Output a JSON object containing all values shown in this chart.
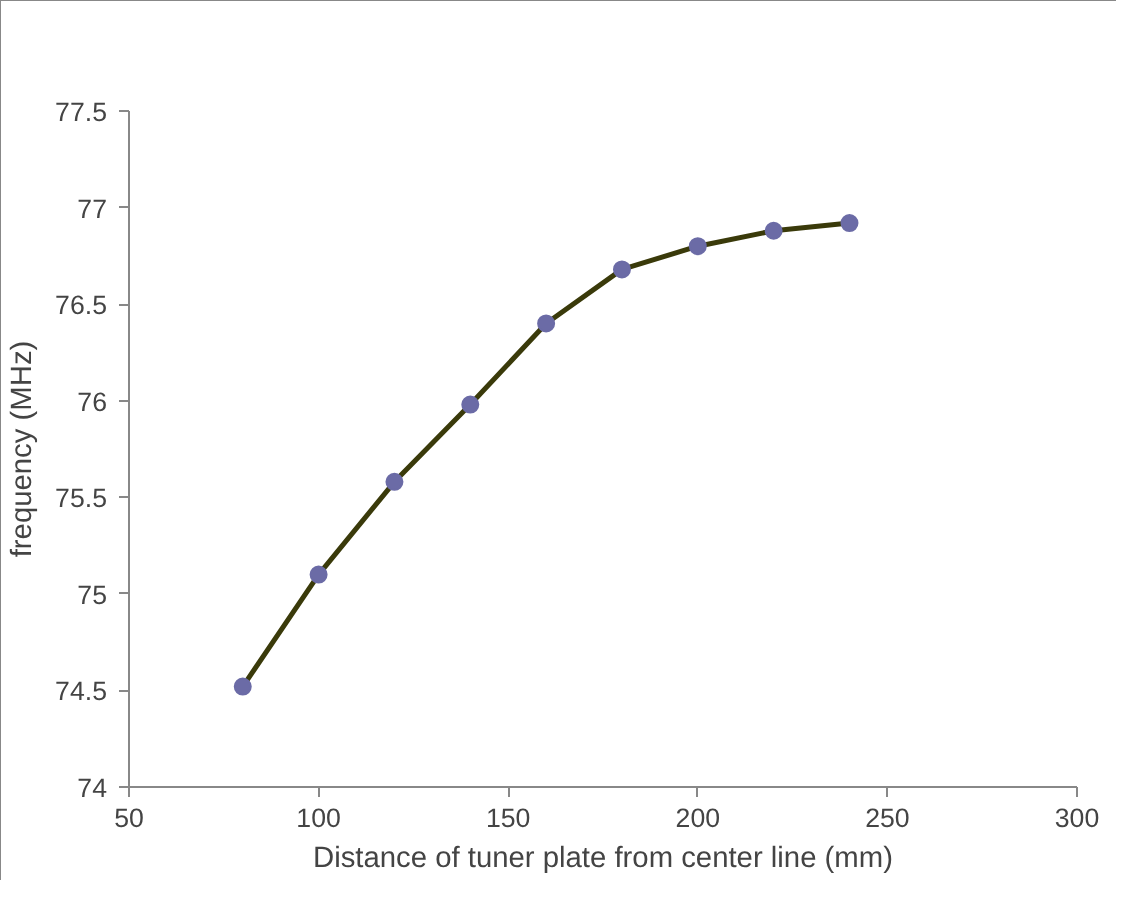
{
  "chart_data": {
    "type": "line",
    "xlabel": "Distance of tuner plate from center line (mm)",
    "ylabel": "frequency (MHz)",
    "x": [
      80,
      100,
      120,
      140,
      160,
      180,
      200,
      220,
      240
    ],
    "series": [
      {
        "color": "#3a3a0a",
        "values": [
          74.52,
          75.1,
          75.58,
          75.98,
          76.4,
          76.68,
          76.8,
          76.88,
          76.92
        ]
      }
    ],
    "xlim": [
      50,
      300
    ],
    "xticks": [
      50,
      100,
      150,
      200,
      250,
      300
    ],
    "ylim": [
      74,
      77.5
    ],
    "yticks": [
      74,
      74.5,
      75,
      75.5,
      76,
      76.5,
      77,
      77.5
    ],
    "marker": "circle",
    "line_style": "solid"
  }
}
